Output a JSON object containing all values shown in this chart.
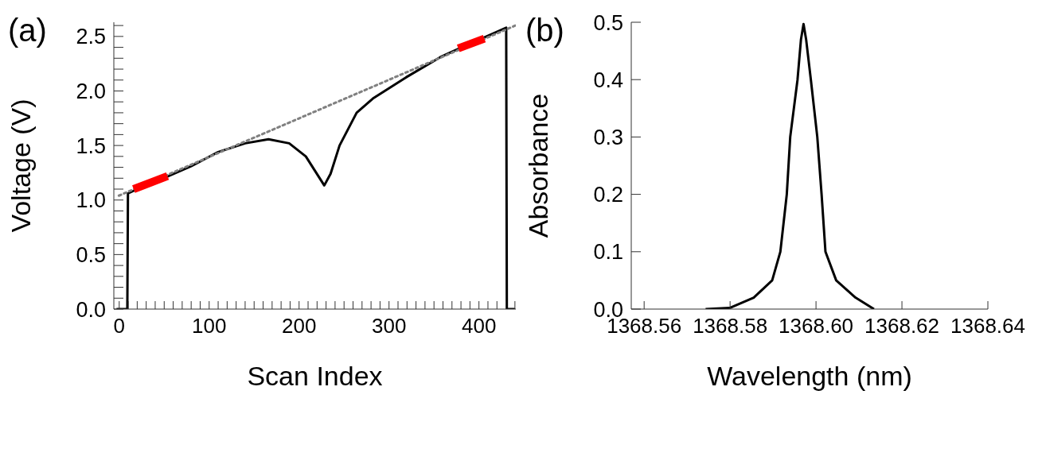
{
  "chart_data": [
    {
      "type": "line",
      "annotations": [
        "(a)"
      ],
      "xlabel": "Scan Index",
      "ylabel": "Voltage (V)",
      "xlim": [
        -6,
        441
      ],
      "ylim": [
        0,
        2.63
      ],
      "xticks": [
        0,
        {
          "value": 10,
          "label": null
        },
        {
          "value": 20,
          "label": null
        },
        {
          "value": 30,
          "label": null
        },
        {
          "value": 40,
          "label": null
        },
        {
          "value": 50,
          "label": null
        },
        {
          "value": 60,
          "label": null
        },
        {
          "value": 70,
          "label": null
        },
        {
          "value": 80,
          "label": null
        },
        {
          "value": 90,
          "label": null
        },
        100,
        {
          "value": 110,
          "label": null
        },
        {
          "value": 120,
          "label": null
        },
        {
          "value": 130,
          "label": null
        },
        {
          "value": 140,
          "label": null
        },
        {
          "value": 150,
          "label": null
        },
        {
          "value": 160,
          "label": null
        },
        {
          "value": 170,
          "label": null
        },
        {
          "value": 180,
          "label": null
        },
        {
          "value": 190,
          "label": null
        },
        200,
        {
          "value": 210,
          "label": null
        },
        {
          "value": 220,
          "label": null
        },
        {
          "value": 230,
          "label": null
        },
        {
          "value": 240,
          "label": null
        },
        {
          "value": 250,
          "label": null
        },
        {
          "value": 260,
          "label": null
        },
        {
          "value": 270,
          "label": null
        },
        {
          "value": 280,
          "label": null
        },
        {
          "value": 290,
          "label": null
        },
        300,
        {
          "value": 310,
          "label": null
        },
        {
          "value": 320,
          "label": null
        },
        {
          "value": 330,
          "label": null
        },
        {
          "value": 340,
          "label": null
        },
        {
          "value": 350,
          "label": null
        },
        {
          "value": 360,
          "label": null
        },
        {
          "value": 370,
          "label": null
        },
        {
          "value": 380,
          "label": null
        },
        {
          "value": 390,
          "label": null
        },
        400,
        {
          "value": 410,
          "label": null
        },
        {
          "value": 420,
          "label": null
        },
        {
          "value": 430,
          "label": null
        },
        {
          "value": 440,
          "label": null
        }
      ],
      "yticks": [
        {
          "value": 0,
          "label": "0.0"
        },
        {
          "value": 0.1,
          "label": null
        },
        {
          "value": 0.2,
          "label": null
        },
        {
          "value": 0.3,
          "label": null
        },
        {
          "value": 0.4,
          "label": null
        },
        0.5,
        {
          "value": 0.6,
          "label": null
        },
        {
          "value": 0.7,
          "label": null
        },
        {
          "value": 0.8,
          "label": null
        },
        {
          "value": 0.9,
          "label": null
        },
        {
          "value": 1,
          "label": "1.0"
        },
        {
          "value": 1.1,
          "label": null
        },
        {
          "value": 1.2,
          "label": null
        },
        {
          "value": 1.3,
          "label": null
        },
        {
          "value": 1.4,
          "label": null
        },
        1.5,
        {
          "value": 1.6,
          "label": null
        },
        {
          "value": 1.7,
          "label": null
        },
        {
          "value": 1.8,
          "label": null
        },
        {
          "value": 1.9,
          "label": null
        },
        {
          "value": 2,
          "label": "2.0"
        },
        {
          "value": 2.1,
          "label": null
        },
        {
          "value": 2.2,
          "label": null
        },
        {
          "value": 2.3,
          "label": null
        },
        {
          "value": 2.4,
          "label": null
        },
        2.5,
        {
          "value": 2.6,
          "label": null
        }
      ],
      "grid": false,
      "marker": "none",
      "series": [
        {
          "color": "#000000",
          "line_style": "solid",
          "x": [
            -3,
            9,
            9.7,
            20,
            53.7,
            80,
            110,
            140,
            166,
            189,
            207.5,
            228,
            235,
            245,
            264,
            282,
            320,
            357,
            370,
            430.3,
            431,
            440
          ],
          "values": [
            0,
            0,
            1.06,
            1.1,
            1.216,
            1.31,
            1.44,
            1.52,
            1.557,
            1.52,
            1.4,
            1.134,
            1.24,
            1.5,
            1.8,
            1.93,
            2.13,
            2.31,
            2.36,
            2.58,
            0,
            0
          ]
        },
        {
          "color": "#808080",
          "line_style": "dotted",
          "x": [
            -0.4,
            440.6
          ],
          "values": [
            1.04,
            2.6
          ]
        },
        {
          "color": "#ff0000",
          "line_style": "solid",
          "x": [
            16,
            53.7
          ],
          "values": [
            1.1,
            1.22
          ]
        },
        {
          "color": "#ff0000",
          "line_style": "solid",
          "x": [
            377,
            406
          ],
          "values": [
            2.39,
            2.48
          ]
        }
      ]
    },
    {
      "type": "line",
      "annotations": [
        "(b)"
      ],
      "xlabel": "Wavelength (nm)",
      "ylabel": "Absorbance",
      "xlim": [
        1368.557,
        1368.64
      ],
      "ylim": [
        0,
        0.5
      ],
      "xticks": [
        1368.56,
        1368.58,
        {
          "value": 1368.6,
          "label": "1368.60"
        },
        1368.62,
        1368.64
      ],
      "yticks": [
        {
          "value": 0,
          "label": "0.0"
        },
        0.1,
        0.2,
        0.3,
        0.4,
        0.5
      ],
      "grid": false,
      "marker": "none",
      "series": [
        {
          "color": "#000000",
          "line_style": "solid",
          "x": [
            1368.5743,
            1368.5799,
            1368.5855,
            1368.5898,
            1368.5917,
            1368.5932,
            1368.594,
            1368.5957,
            1368.5965,
            1368.5971,
            1368.5977,
            1368.5988,
            1368.6003,
            1368.6013,
            1368.6022,
            1368.6047,
            1368.6092,
            1368.6135
          ],
          "values": [
            0,
            0.002,
            0.02,
            0.05,
            0.1,
            0.2,
            0.3,
            0.4,
            0.47,
            0.497,
            0.47,
            0.4,
            0.3,
            0.2,
            0.1,
            0.05,
            0.02,
            0
          ]
        }
      ]
    }
  ]
}
